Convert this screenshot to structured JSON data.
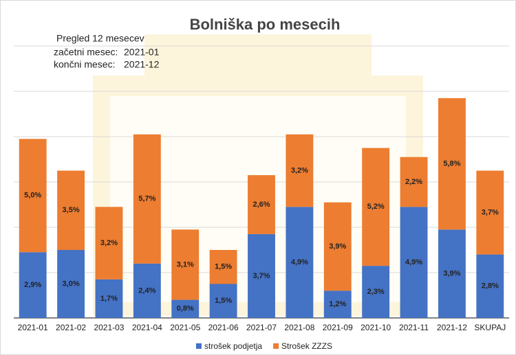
{
  "chart_data": {
    "type": "stacked_bar",
    "title": "Bolniška po mesecih",
    "categories": [
      "2021-01",
      "2021-02",
      "2021-03",
      "2021-04",
      "2021-05",
      "2021-06",
      "2021-07",
      "2021-08",
      "2021-09",
      "2021-10",
      "2021-11",
      "2021-12",
      "SKUPAJ"
    ],
    "series": [
      {
        "name": "strošek podjetja",
        "color": "#4472c4",
        "values": [
          2.9,
          3.0,
          1.7,
          2.4,
          0.8,
          1.5,
          3.7,
          4.9,
          1.2,
          2.3,
          4.9,
          3.9,
          2.8
        ],
        "value_labels": [
          "2,9%",
          "3,0%",
          "1,7%",
          "2,4%",
          "0,8%",
          "1,5%",
          "3,7%",
          "4,9%",
          "1,2%",
          "2,3%",
          "4,9%",
          "3,9%",
          "2,8%"
        ]
      },
      {
        "name": "Strošek ZZZS",
        "color": "#ed7d31",
        "values": [
          5.0,
          3.5,
          3.2,
          5.7,
          3.1,
          1.5,
          2.6,
          3.2,
          3.9,
          5.2,
          2.2,
          5.8,
          3.7
        ],
        "value_labels": [
          "5,0%",
          "3,5%",
          "3,2%",
          "5,7%",
          "3,1%",
          "1,5%",
          "2,6%",
          "3,2%",
          "3,9%",
          "5,2%",
          "2,2%",
          "5,8%",
          "3,7%"
        ]
      }
    ],
    "ylim": [
      0,
      12
    ],
    "yticks": [
      0,
      2,
      4,
      6,
      8,
      10,
      12
    ],
    "grid": true,
    "legend": "bottom"
  },
  "info": {
    "overview": "Pregled 12 mesecev",
    "start_label": "začetni mesec:",
    "start_value": "2021-01",
    "end_label": "končni mesec:",
    "end_value": "2021-12"
  }
}
